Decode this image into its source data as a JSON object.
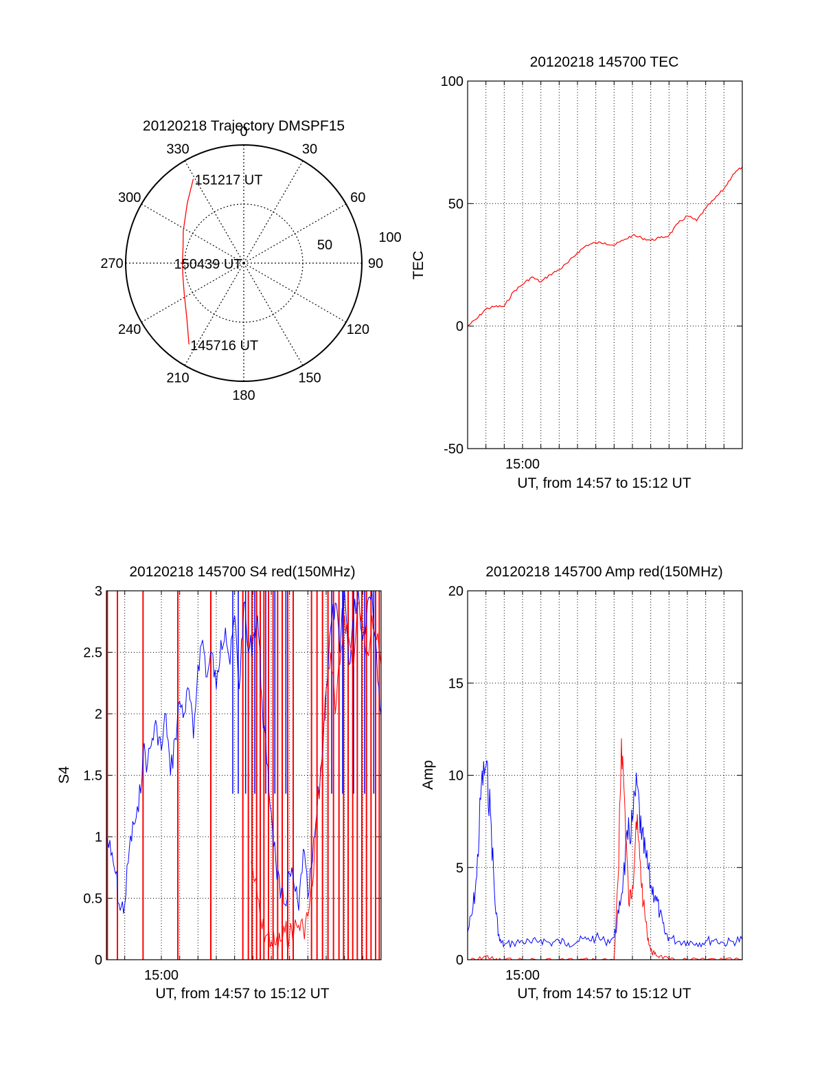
{
  "colors": {
    "red": "#ff0000",
    "blue": "#0000ff",
    "axis": "#000000",
    "grid": "#000000",
    "background": "#ffffff"
  },
  "chart_data": [
    {
      "id": "trajectory",
      "type": "polar",
      "title": "20120218 Trajectory DMSPF15",
      "angle_ticks": [
        "0",
        "30",
        "60",
        "90",
        "120",
        "150",
        "180",
        "210",
        "240",
        "270",
        "300",
        "330"
      ],
      "radial_ticks": [
        "50",
        "100"
      ],
      "rlim": [
        0,
        100
      ],
      "direction": "clockwise from top",
      "grid": true,
      "series": [
        {
          "color": "red",
          "points": [
            [
              329,
              83
            ],
            [
              317,
              70
            ],
            [
              298,
              58
            ],
            [
              284,
              53
            ],
            [
              270,
              52
            ],
            [
              256,
              53
            ],
            [
              242,
              57
            ],
            [
              226,
              67
            ],
            [
              214,
              83
            ]
          ]
        }
      ],
      "annotations": [
        {
          "text": "151217 UT",
          "az": 329,
          "zen": 83
        },
        {
          "text": "150439 UT",
          "az": 270,
          "zen": 2
        },
        {
          "text": "145716 UT",
          "az": 214,
          "zen": 83
        }
      ]
    },
    {
      "id": "tec",
      "type": "line",
      "title": "20120218 145700 TEC",
      "ylabel": "TEC",
      "xlabel": "UT, from 14:57 to 15:12 UT",
      "xlim": [
        0,
        15
      ],
      "ylim": [
        -50,
        100
      ],
      "yticks": [
        -50,
        0,
        50,
        100
      ],
      "xtick_label": "15:00",
      "grid": true,
      "series": [
        {
          "color": "red",
          "x": [
            0,
            0.5,
            1,
            1.5,
            2,
            2.5,
            3,
            3.5,
            4,
            4.5,
            5,
            5.5,
            6,
            6.5,
            7,
            7.5,
            8,
            8.5,
            9,
            9.5,
            10,
            10.5,
            11,
            11.5,
            12,
            12.5,
            13,
            13.5,
            14,
            14.5,
            15
          ],
          "y": [
            0,
            3,
            7,
            8,
            8,
            14,
            17,
            20,
            18,
            21,
            23,
            26,
            30,
            33,
            34,
            34,
            33,
            35,
            37,
            36,
            35,
            36,
            37,
            42,
            45,
            43,
            48,
            52,
            56,
            62,
            65
          ]
        }
      ]
    },
    {
      "id": "s4",
      "type": "line",
      "title": "20120218 145700 S4 red(150MHz)",
      "ylabel": "S4",
      "xlabel": "UT, from 14:57 to 15:12 UT",
      "xlim": [
        0,
        15
      ],
      "ylim": [
        0,
        3
      ],
      "yticks": [
        "0",
        "0.5",
        "1",
        "1.5",
        "2",
        "2.5",
        "3"
      ],
      "xtick_label": "15:00",
      "grid": true,
      "series": [
        {
          "color": "blue",
          "x": [
            0,
            0.25,
            0.5,
            0.75,
            1,
            1.25,
            1.5,
            1.75,
            2,
            2.25,
            2.5,
            2.75,
            3,
            3.25,
            3.5,
            3.75,
            4,
            4.25,
            4.5,
            4.75,
            5,
            5.25,
            5.5,
            5.75,
            6,
            6.25,
            6.5,
            6.75,
            7,
            7.25,
            7.5,
            7.75,
            8,
            8.25,
            8.5,
            8.75,
            9,
            9.25,
            9.5,
            9.75,
            10,
            10.25,
            10.5,
            10.75,
            11,
            11.25,
            11.5,
            11.75,
            12,
            12.25,
            12.5,
            12.75,
            13,
            13.25,
            13.5,
            13.75,
            14,
            14.25,
            14.5,
            14.75,
            15
          ],
          "y": [
            1.0,
            0.85,
            0.7,
            0.4,
            0.45,
            0.9,
            1.1,
            1.2,
            1.7,
            1.6,
            1.8,
            1.9,
            1.7,
            2.0,
            1.5,
            1.8,
            2.1,
            2.0,
            2.2,
            1.8,
            2.4,
            2.6,
            2.3,
            2.5,
            2.2,
            2.6,
            2.7,
            2.4,
            2.8,
            2.2,
            2.9,
            2.5,
            2.6,
            2.8,
            2.1,
            1.6,
            1.2,
            0.8,
            0.5,
            0.45,
            0.7,
            0.6,
            0.4,
            0.9,
            0.5,
            0.8,
            1.2,
            1.6,
            2.2,
            2.7,
            2.9,
            2.5,
            3.0,
            2.4,
            2.8,
            3.0,
            2.6,
            2.9,
            3.0,
            2.5,
            2.0
          ]
        },
        {
          "color": "red",
          "x": [
            7.9,
            8.25,
            8.5,
            8.75,
            9,
            9.25,
            9.5,
            9.75,
            10,
            10.25,
            10.5,
            10.75,
            11,
            11.25,
            11.5,
            11.75,
            12,
            12.25,
            12.5,
            12.75,
            13,
            13.25,
            13.5,
            13.75,
            14,
            14.25,
            14.5,
            14.75,
            15
          ],
          "y": [
            0.8,
            0.5,
            0.25,
            0.2,
            0.15,
            0.12,
            0.15,
            0.22,
            0.2,
            0.25,
            0.28,
            0.25,
            0.35,
            0.6,
            1.2,
            1.6,
            2.2,
            2.5,
            2.0,
            2.4,
            2.8,
            2.6,
            2.4,
            2.9,
            2.7,
            2.5,
            2.8,
            2.6,
            2.4
          ]
        }
      ],
      "spikes_red_x": [
        0.05,
        0.6,
        2.0,
        3.9,
        5.7,
        7.45,
        7.75,
        7.95,
        8.2,
        8.4,
        8.6,
        8.85,
        9.1,
        9.35,
        9.6,
        9.9,
        10.2,
        11.2,
        11.5,
        11.8,
        12.1,
        12.4,
        12.7,
        12.95,
        13.2,
        13.45,
        13.7,
        13.95,
        14.2,
        14.45,
        14.7,
        14.9
      ],
      "spikes_blue_x": [
        6.9,
        7.2,
        7.6,
        8.1,
        8.7,
        9.2,
        9.8,
        12.3,
        12.9,
        13.5,
        14.1,
        14.6
      ]
    },
    {
      "id": "amp",
      "type": "line",
      "title": "20120218 145700 Amp red(150MHz)",
      "ylabel": "Amp",
      "xlabel": "UT, from 14:57 to 15:12 UT",
      "xlim": [
        0,
        15
      ],
      "ylim": [
        0,
        20
      ],
      "yticks": [
        0,
        5,
        10,
        15,
        20
      ],
      "xtick_label": "15:00",
      "grid": true,
      "series": [
        {
          "color": "blue",
          "x": [
            0,
            0.25,
            0.5,
            0.75,
            1,
            1.25,
            1.5,
            1.75,
            2,
            2.5,
            3,
            3.5,
            4,
            4.5,
            5,
            5.5,
            6,
            6.5,
            7,
            7.5,
            8,
            8.25,
            8.5,
            8.75,
            9,
            9.25,
            9.5,
            9.75,
            10,
            10.25,
            10.5,
            10.75,
            11,
            11.5,
            12,
            12.5,
            13,
            13.5,
            14,
            14.5,
            15
          ],
          "y": [
            1.5,
            2.5,
            4.5,
            9.5,
            10.5,
            8.0,
            3.0,
            1.0,
            0.8,
            0.9,
            1.0,
            0.9,
            1.1,
            0.9,
            1.0,
            0.9,
            1.0,
            1.1,
            1.2,
            1.0,
            1.2,
            2.5,
            4.5,
            6.5,
            7.5,
            9.5,
            6.5,
            5.5,
            4.0,
            3.5,
            2.5,
            1.5,
            1.2,
            1.0,
            1.0,
            0.9,
            1.0,
            1.1,
            0.9,
            1.0,
            1.1
          ]
        },
        {
          "color": "red",
          "x": [
            0,
            0.5,
            1,
            1.5,
            2,
            3,
            4,
            5,
            6,
            7,
            8,
            8.25,
            8.4,
            8.6,
            8.8,
            9,
            9.2,
            9.4,
            9.6,
            9.8,
            10,
            10.2,
            10.5,
            11,
            12,
            13,
            14,
            15
          ],
          "y": [
            0,
            0,
            0.2,
            0,
            0,
            0,
            0,
            0,
            0,
            0,
            0,
            5.0,
            12.0,
            8.0,
            3.0,
            4.0,
            7.5,
            5.5,
            3.0,
            1.5,
            0.5,
            0.3,
            0.2,
            0,
            0,
            0,
            0,
            0
          ]
        }
      ]
    }
  ]
}
